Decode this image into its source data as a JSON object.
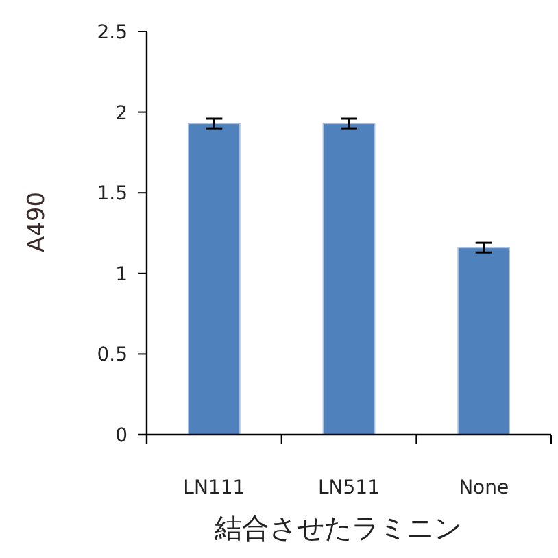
{
  "chart_data": {
    "type": "bar",
    "xlabel": "結合させたラミニン",
    "ylabel": "A490",
    "categories": [
      "LN111",
      "LN511",
      "None"
    ],
    "values": [
      1.93,
      1.93,
      1.16
    ],
    "errors": [
      0.03,
      0.03,
      0.03
    ],
    "color": "#4f81bd",
    "ylim": [
      0,
      2.5
    ],
    "yticks": [
      0,
      0.5,
      1,
      1.5,
      2,
      2.5
    ],
    "grid": false
  }
}
